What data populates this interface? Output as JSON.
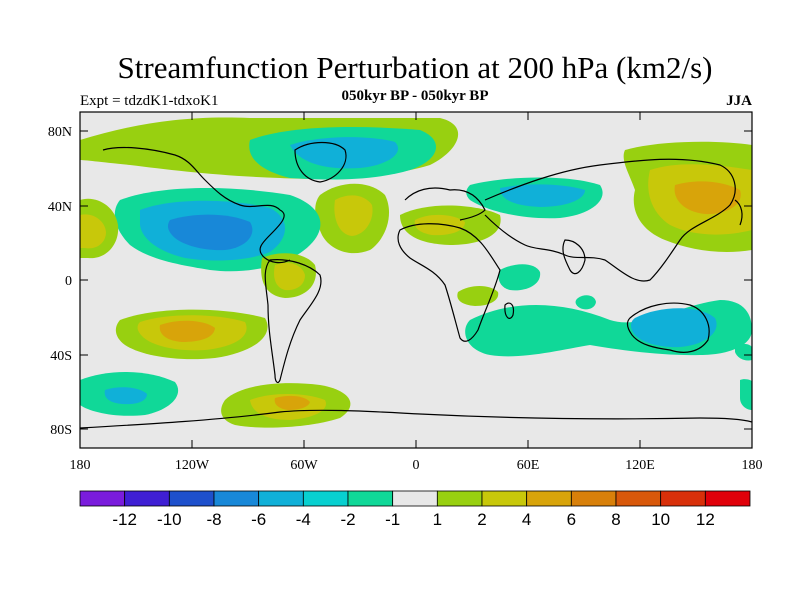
{
  "map": {
    "title": "Streamfunction Perturbation at 200 hPa (km2/s)",
    "subtitle": "050kyr BP - 050kyr BP",
    "experiment_label": "Expt = tdzdK1-tdxoK1",
    "season": "JJA",
    "lat_ticks": [
      "80N",
      "40N",
      "0",
      "40S",
      "80S"
    ],
    "lon_ticks": [
      "180",
      "120W",
      "60W",
      "0",
      "60E",
      "120E",
      "180"
    ]
  },
  "colorbar": {
    "colors": [
      "#7a1cdc",
      "#3f1fd4",
      "#1e50cc",
      "#1888d8",
      "#10b0d8",
      "#08d0d0",
      "#10d898",
      "#e8e8e8",
      "#98d010",
      "#c8c80a",
      "#d8a40a",
      "#d8800a",
      "#d8580a",
      "#d8300a",
      "#e0000a"
    ],
    "labels": [
      "-12",
      "-10",
      "-8",
      "-6",
      "-4",
      "-2",
      "-1",
      "1",
      "2",
      "4",
      "6",
      "8",
      "10",
      "12"
    ]
  }
}
